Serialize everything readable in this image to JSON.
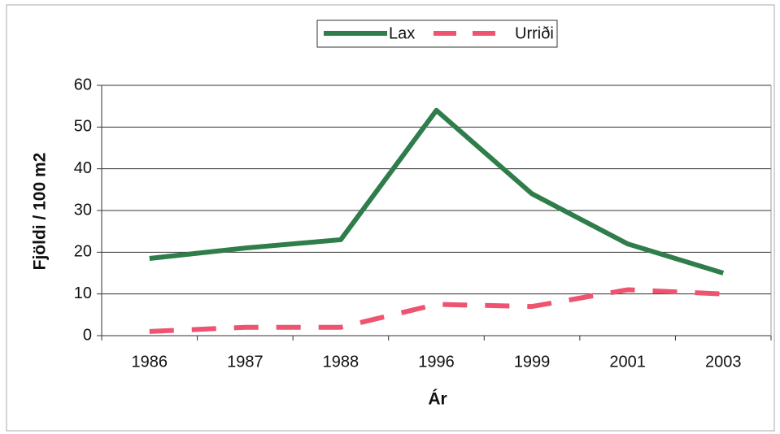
{
  "chart_data": {
    "type": "line",
    "categories": [
      "1986",
      "1987",
      "1988",
      "1996",
      "1999",
      "2001",
      "2003"
    ],
    "series": [
      {
        "name": "Lax",
        "color": "#2f7d4b",
        "dash": false,
        "values": [
          18.5,
          21,
          23,
          54,
          34,
          22,
          15
        ]
      },
      {
        "name": "Urriði",
        "color": "#ee5470",
        "dash": true,
        "values": [
          1,
          2,
          2,
          7.5,
          7,
          11,
          10
        ]
      }
    ],
    "ylim": [
      0,
      60
    ],
    "yticks": [
      0,
      10,
      20,
      30,
      40,
      50,
      60
    ],
    "grid": true,
    "xlabel": "Ár",
    "ylabel": "Fjöldi / 100 m2",
    "legend": "top"
  }
}
